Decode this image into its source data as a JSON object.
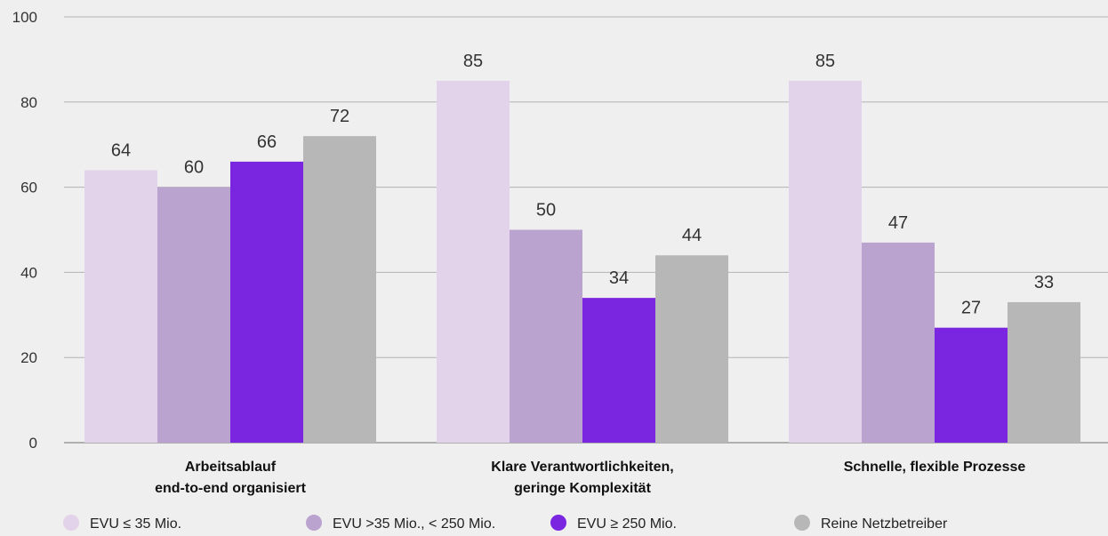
{
  "chart_data": {
    "type": "bar",
    "categories": [
      [
        "Arbeitsablauf",
        "end-to-end organisiert"
      ],
      [
        "Klare Verantwortlichkeiten,",
        "geringe Komplexität"
      ],
      [
        "Schnelle, flexible Prozesse"
      ]
    ],
    "series": [
      {
        "name": "EVU ≤ 35 Mio.",
        "color": "#e3d3ea",
        "values": [
          64,
          85,
          85
        ]
      },
      {
        "name": "EVU >35 Mio., < 250 Mio.",
        "color": "#bba3d0",
        "values": [
          60,
          50,
          47
        ]
      },
      {
        "name": "EVU ≥ 250 Mio.",
        "color": "#7a26e0",
        "values": [
          66,
          34,
          27
        ]
      },
      {
        "name": "Reine Netzbetreiber",
        "color": "#b7b7b7",
        "values": [
          72,
          44,
          33
        ]
      }
    ],
    "ylim": [
      0,
      100
    ],
    "yticks": [
      0,
      20,
      40,
      60,
      80,
      100
    ],
    "grid": true,
    "legend_position": "bottom",
    "title": "",
    "xlabel": "",
    "ylabel": ""
  }
}
